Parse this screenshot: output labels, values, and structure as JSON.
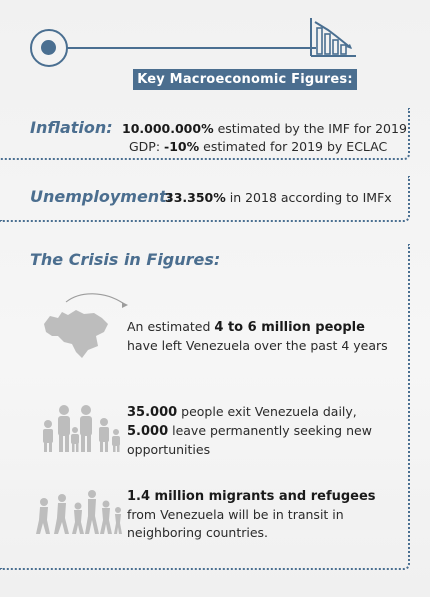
{
  "header": {
    "banner_label": "Key Macroeconomic Figures:"
  },
  "inflation": {
    "title": "Inflation:",
    "line1_value": "10.000.000%",
    "line1_text": " estimated by the IMF for 2019",
    "line2_prefix": "GDP: ",
    "line2_value": "-10%",
    "line2_text": " estimated for 2019 by ECLAC"
  },
  "unemployment": {
    "title": "Unemployment:",
    "value": "33.350%",
    "text": " in 2018 according to IMFx"
  },
  "crisis": {
    "title": "The Crisis in Figures:",
    "items": [
      {
        "pre": "An estimated ",
        "bold": "4 to 6 million people",
        "rest": "have left Venezuela over the past 4 years",
        "icon": "venezuela-map-icon"
      },
      {
        "bold1": "35.000",
        "text1": " people exit Venezuela daily,",
        "bold2": "5.000",
        "text2": " leave permanently seeking new",
        "text3": "opportunities",
        "icon": "family-group-icon"
      },
      {
        "bold": "1.4 million migrants and refugees",
        "line2": "from Venezuela will be in transit in",
        "line3": "neighboring countries.",
        "icon": "walking-migrants-icon"
      }
    ]
  },
  "colors": {
    "accent": "#4b6e8f",
    "icon_gray": "#bfbfbf",
    "text": "#2a2a2a"
  }
}
